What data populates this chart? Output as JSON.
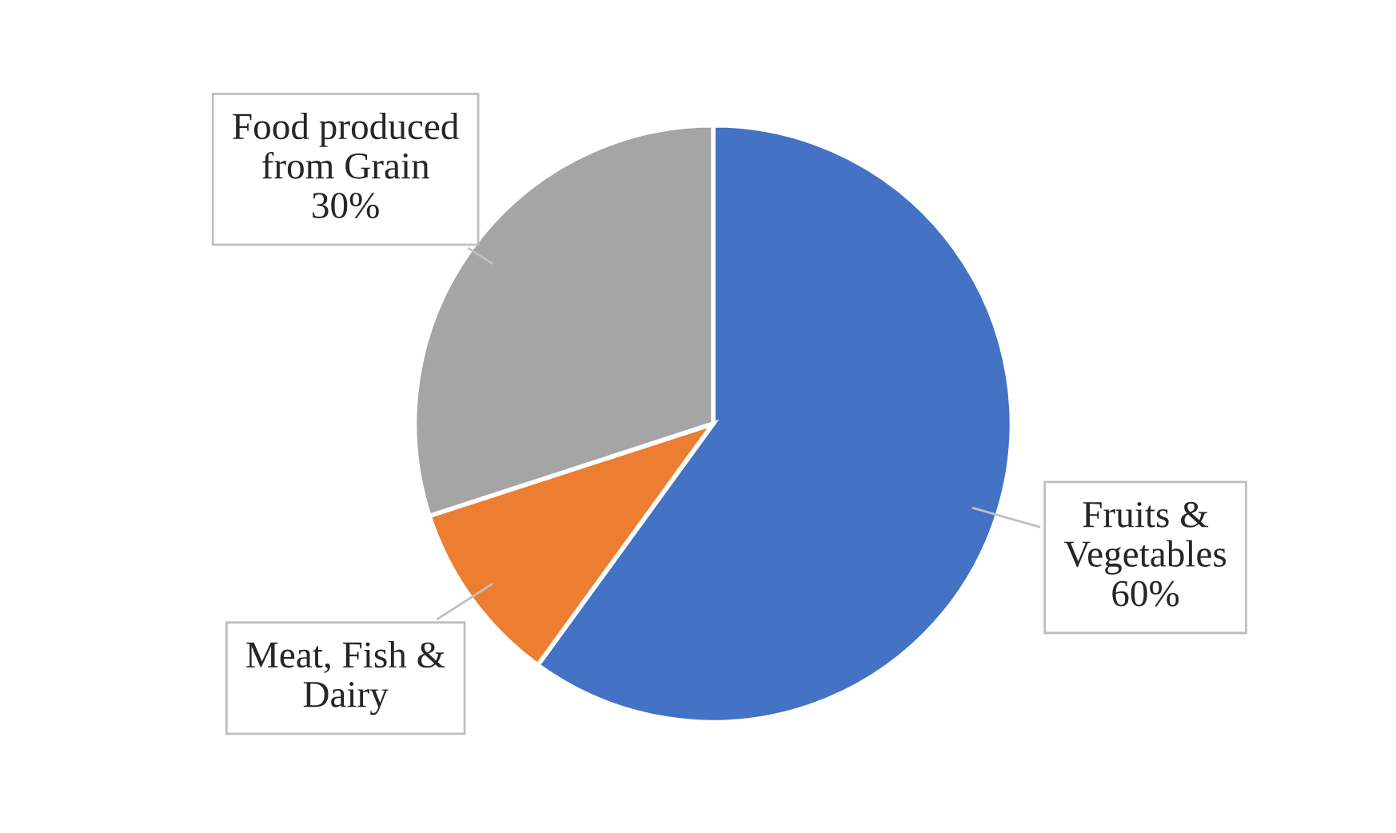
{
  "chart_data": {
    "type": "pie",
    "categories": [
      "Fruits &\nVegetables",
      "Meat, Fish &\nDairy",
      "Food produced\nfrom Grain"
    ],
    "values": [
      60,
      10,
      30
    ],
    "value_labels": [
      "60%",
      null,
      "30%"
    ],
    "colors": [
      "#4472c4",
      "#ed7d31",
      "#a5a5a5"
    ]
  }
}
